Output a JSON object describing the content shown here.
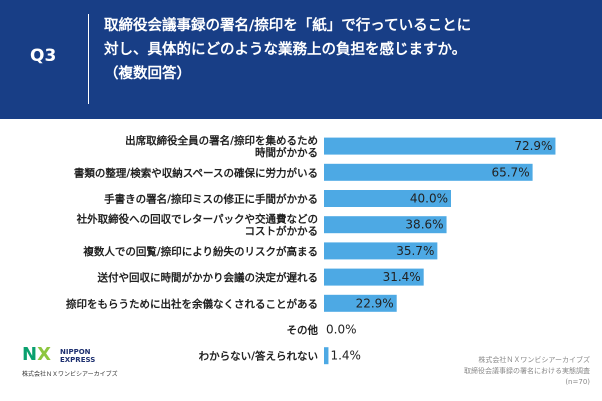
{
  "header": {
    "q_label": "Q3",
    "title_lines": [
      "取締役会議事録の署名/捺印を「紙」で行っていることに",
      "対し、具体的にどのような業務上の負担を感じますか。",
      "（複数回答）"
    ]
  },
  "chart_data": {
    "type": "bar",
    "orientation": "horizontal",
    "categories": [
      [
        "出席取締役全員の署名/捺印を集めるため",
        "時間がかかる"
      ],
      [
        "書類の整理/検索や収納スペースの確保に労力がいる"
      ],
      [
        "手書きの署名/捺印ミスの修正に手間がかかる"
      ],
      [
        "社外取締役への回収でレターパックや交通費などの",
        "コストがかかる"
      ],
      [
        "複数人での回覧/捺印により紛失のリスクが高まる"
      ],
      [
        "送付や回収に時間がかかり会議の決定が遅れる"
      ],
      [
        "捺印をもらうために出社を余儀なくされることがある"
      ],
      [
        "その他"
      ],
      [
        "わからない/答えられない"
      ]
    ],
    "values": [
      72.9,
      65.7,
      40.0,
      38.6,
      35.7,
      31.4,
      22.9,
      0.0,
      1.4
    ],
    "value_labels": [
      "72.9%",
      "65.7%",
      "40.0%",
      "38.6%",
      "35.7%",
      "31.4%",
      "22.9%",
      "0.0%",
      "1.4%"
    ],
    "xlim": [
      0,
      80
    ],
    "bar_color": "#4da9e4",
    "grid": false,
    "legend": "none"
  },
  "logo": {
    "mark_n": "N",
    "mark_x": "X",
    "name_line1": "NIPPON",
    "name_line2": "EXPRESS",
    "company": "株式会社ＮＸワンビシアーカイブズ"
  },
  "source": {
    "line1": "株式会社ＮＸワンビシアーカイブズ",
    "line2": "取締役会議事録の署名における実態調査",
    "line3": "(n=70)"
  },
  "colors": {
    "header_bg": "#183e86",
    "bar": "#4da9e4",
    "nx_green": "#0aa06e",
    "nx_lightgreen": "#8dc63f"
  }
}
